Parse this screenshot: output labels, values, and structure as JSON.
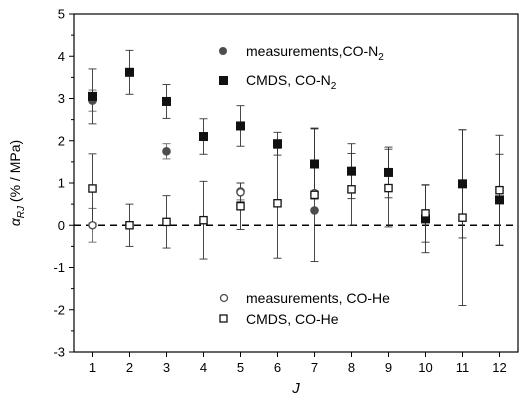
{
  "chart_data": {
    "type": "scatter",
    "xlabel": "J",
    "ylabel_main": "α",
    "ylabel_sub": "RJ",
    "ylabel_rest": " (% / MPa)",
    "xlim": [
      0.5,
      12.5
    ],
    "ylim": [
      -3,
      5
    ],
    "xticks": [
      1,
      2,
      3,
      4,
      5,
      6,
      7,
      8,
      9,
      10,
      11,
      12
    ],
    "yticks": [
      -3,
      -2,
      -1,
      0,
      1,
      2,
      3,
      4,
      5
    ],
    "reference_line": 0,
    "legend_top": [
      {
        "text": "measurements,CO-N",
        "sub": "2",
        "marker": "circle-filled"
      },
      {
        "text": "CMDS, CO-N",
        "sub": "2",
        "marker": "square-filled"
      }
    ],
    "legend_bottom": [
      {
        "text": "measurements, CO-He",
        "marker": "circle-open"
      },
      {
        "text": "CMDS, CO-He",
        "marker": "square-open"
      }
    ],
    "series": [
      {
        "name": "measurements,CO-N2",
        "marker": "circle-filled",
        "color": "#4d4d4d",
        "x": [
          1,
          3,
          5,
          7
        ],
        "y": [
          2.95,
          1.75,
          0.8,
          0.35
        ],
        "err": [
          0.25,
          0.18,
          0.2,
          0.0
        ]
      },
      {
        "name": "CMDS, CO-N2",
        "marker": "square-filled",
        "color": "#111111",
        "x": [
          1,
          2,
          3,
          4,
          5,
          6,
          7,
          8,
          9,
          10,
          11,
          12
        ],
        "y": [
          3.05,
          3.62,
          2.93,
          2.1,
          2.35,
          1.93,
          1.45,
          1.28,
          1.25,
          0.15,
          0.98,
          0.6
        ],
        "err": [
          0.65,
          0.52,
          0.4,
          0.42,
          0.48,
          0.27,
          0.83,
          0.65,
          0.6,
          0.8,
          1.28,
          1.08
        ]
      },
      {
        "name": "measurements, CO-He",
        "marker": "circle-open",
        "color": "#4d4d4d",
        "x": [
          1,
          5,
          7
        ],
        "y": [
          0.0,
          0.78,
          0.76
        ],
        "err": [
          0.4,
          0.22,
          0.0
        ]
      },
      {
        "name": "CMDS, CO-He",
        "marker": "square-open",
        "color": "#111111",
        "x": [
          1,
          2,
          3,
          4,
          5,
          6,
          7,
          8,
          9,
          10,
          11,
          12
        ],
        "y": [
          0.87,
          0.0,
          0.08,
          0.12,
          0.45,
          0.52,
          0.72,
          0.85,
          0.88,
          0.28,
          0.18,
          0.83
        ],
        "err": [
          0.82,
          0.5,
          0.62,
          0.92,
          0.55,
          1.3,
          1.58,
          0.85,
          0.92,
          0.68,
          2.08,
          1.3
        ]
      }
    ]
  }
}
